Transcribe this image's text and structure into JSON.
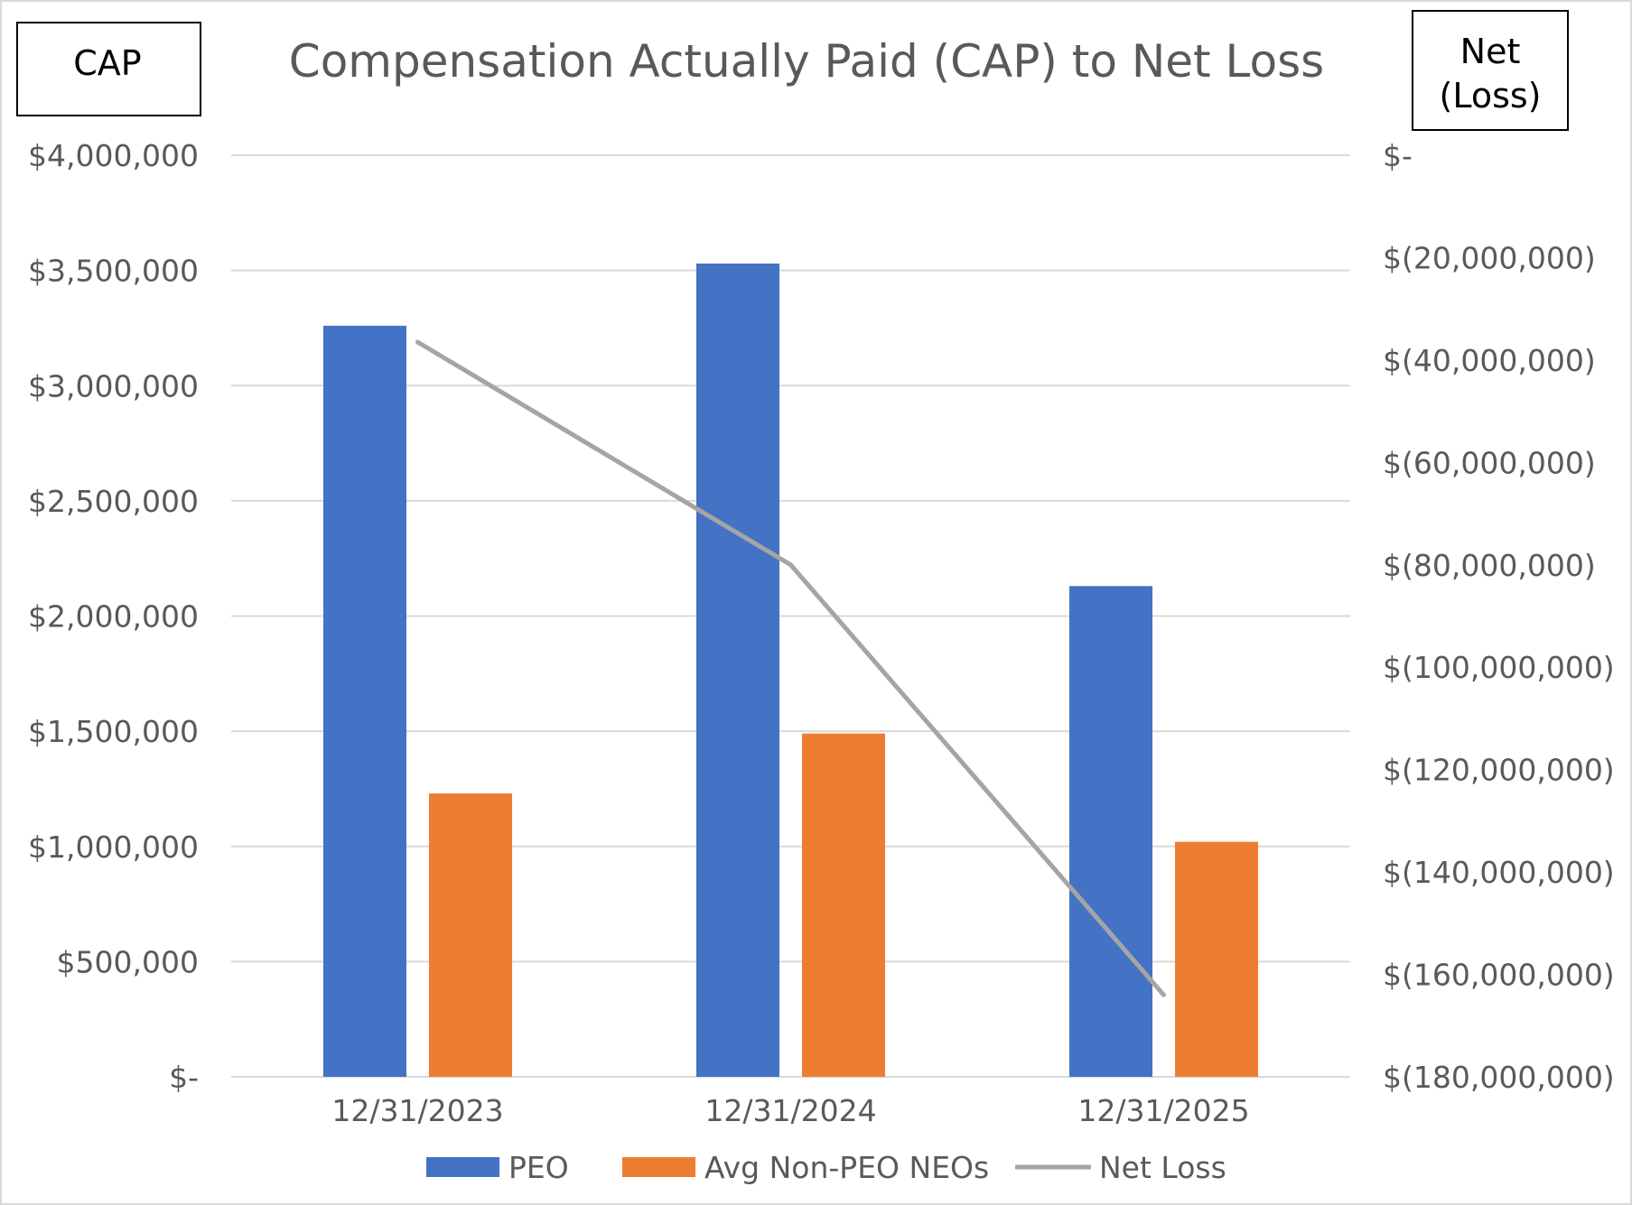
{
  "chart_data": {
    "type": "bar",
    "title": "Compensation Actually Paid (CAP) to Net Loss",
    "left_axis_label": "CAP",
    "right_axis_label_lines": [
      "Net",
      "(Loss)"
    ],
    "categories": [
      "12/31/2023",
      "12/31/2024",
      "12/31/2025"
    ],
    "ylim": [
      0,
      4000000
    ],
    "y_ticks": [
      0,
      500000,
      1000000,
      1500000,
      2000000,
      2500000,
      3000000,
      3500000,
      4000000
    ],
    "y_tick_labels": [
      "$-",
      "$500,000",
      "$1,000,000",
      "$1,500,000",
      "$2,000,000",
      "$2,500,000",
      "$3,000,000",
      "$3,500,000",
      "$4,000,000"
    ],
    "y2lim": [
      -180000000,
      0
    ],
    "y2_ticks": [
      0,
      -20000000,
      -40000000,
      -60000000,
      -80000000,
      -100000000,
      -120000000,
      -140000000,
      -160000000,
      -180000000
    ],
    "y2_tick_labels": [
      "$-",
      "$(20,000,000)",
      "$(40,000,000)",
      "$(60,000,000)",
      "$(80,000,000)",
      "$(100,000,000)",
      "$(120,000,000)",
      "$(140,000,000)",
      "$(160,000,000)",
      "$(180,000,000)"
    ],
    "grid": true,
    "legend_position": "bottom",
    "series": [
      {
        "name": "PEO",
        "type": "bar",
        "axis": "left",
        "color": "#4472C4",
        "values": [
          3260000,
          3530000,
          2130000
        ]
      },
      {
        "name": "Avg Non-PEO NEOs",
        "type": "bar",
        "axis": "left",
        "color": "#ED7D31",
        "values": [
          1230000,
          1490000,
          1020000
        ]
      },
      {
        "name": "Net Loss",
        "type": "line",
        "axis": "right",
        "color": "#A5A5A5",
        "values": [
          -36500000,
          -80000000,
          -164000000
        ]
      }
    ]
  }
}
